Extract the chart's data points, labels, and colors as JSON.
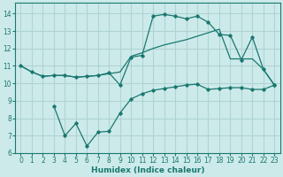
{
  "xlabel": "Humidex (Indice chaleur)",
  "background_color": "#cdeaea",
  "grid_color": "#afd4d4",
  "line_color": "#1a7870",
  "xlim": [
    -0.5,
    23.5
  ],
  "ylim": [
    6,
    14.6
  ],
  "yticks": [
    6,
    7,
    8,
    9,
    10,
    11,
    12,
    13,
    14
  ],
  "xticks": [
    0,
    1,
    2,
    3,
    4,
    5,
    6,
    7,
    8,
    9,
    10,
    11,
    12,
    13,
    14,
    15,
    16,
    17,
    18,
    19,
    20,
    21,
    22,
    23
  ],
  "line1_x": [
    0,
    1,
    2,
    3,
    4,
    5,
    6,
    7,
    8,
    9,
    10,
    11,
    12,
    13,
    14,
    15,
    16,
    17,
    18,
    19,
    20,
    21,
    22,
    23
  ],
  "line1_y": [
    11.0,
    10.65,
    10.4,
    10.45,
    10.45,
    10.35,
    10.4,
    10.45,
    10.55,
    10.65,
    11.55,
    11.75,
    12.0,
    12.2,
    12.35,
    12.5,
    12.7,
    12.9,
    13.1,
    11.4,
    11.4,
    11.4,
    10.8,
    9.9
  ],
  "line2_x": [
    0,
    1,
    2,
    3,
    4,
    5,
    6,
    7,
    8,
    9,
    10,
    11,
    12,
    13,
    14,
    15,
    16,
    17,
    18,
    19,
    20,
    21,
    22,
    23
  ],
  "line2_y": [
    11.0,
    10.65,
    10.4,
    10.45,
    10.45,
    10.35,
    10.4,
    10.45,
    10.6,
    9.9,
    11.5,
    11.6,
    13.85,
    13.95,
    13.85,
    13.7,
    13.85,
    13.5,
    12.8,
    12.75,
    11.35,
    12.65,
    10.8,
    9.9
  ],
  "line3_x": [
    3,
    4,
    5,
    6,
    7,
    8,
    9,
    10,
    11,
    12,
    13,
    14,
    15,
    16,
    17,
    18,
    19,
    20,
    21,
    22,
    23
  ],
  "line3_y": [
    8.7,
    7.0,
    7.7,
    6.4,
    7.2,
    7.25,
    8.3,
    9.1,
    9.4,
    9.6,
    9.7,
    9.8,
    9.9,
    9.95,
    9.65,
    9.7,
    9.75,
    9.75,
    9.65,
    9.65,
    9.9
  ]
}
